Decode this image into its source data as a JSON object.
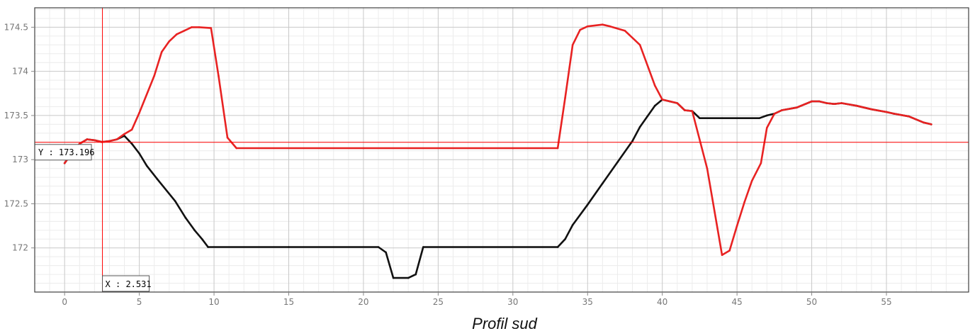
{
  "chart_data": {
    "type": "line",
    "title": "",
    "xlabel": "Profil sud",
    "ylabel": "",
    "xlim": [
      -2,
      60.5
    ],
    "ylim": [
      171.5,
      174.72
    ],
    "x_ticks": [
      0,
      5,
      10,
      15,
      20,
      25,
      30,
      35,
      40,
      45,
      50,
      55
    ],
    "y_ticks": [
      172,
      172.5,
      173,
      173.5,
      174,
      174.5
    ],
    "x_tick_labels": [
      "0",
      "5",
      "10",
      "15",
      "20",
      "25",
      "30",
      "35",
      "40",
      "45",
      "50",
      "55"
    ],
    "y_tick_labels": [
      "172",
      "172.5",
      "173",
      "173.5",
      "174",
      "174.5"
    ],
    "grid": true,
    "series": [
      {
        "color": "#111111",
        "points": [
          [
            0,
            172.96
          ],
          [
            0.5,
            173.08
          ],
          [
            1,
            173.18
          ],
          [
            1.5,
            173.23
          ],
          [
            2,
            173.22
          ],
          [
            2.5,
            173.2
          ],
          [
            3,
            173.21
          ],
          [
            3.5,
            173.23
          ],
          [
            4,
            173.27
          ],
          [
            4.5,
            173.18
          ],
          [
            5,
            173.07
          ],
          [
            5.5,
            172.93
          ],
          [
            6.2,
            172.78
          ],
          [
            7.4,
            172.53
          ],
          [
            8.1,
            172.34
          ],
          [
            8.7,
            172.2
          ],
          [
            9.2,
            172.1
          ],
          [
            9.6,
            172.01
          ],
          [
            15,
            172.01
          ],
          [
            21,
            172.01
          ],
          [
            21.5,
            171.95
          ],
          [
            22,
            171.66
          ],
          [
            23,
            171.66
          ],
          [
            23.5,
            171.7
          ],
          [
            24,
            172.01
          ],
          [
            33,
            172.01
          ],
          [
            33.5,
            172.1
          ],
          [
            34,
            172.26
          ],
          [
            35,
            172.49
          ],
          [
            36,
            172.73
          ],
          [
            37,
            172.97
          ],
          [
            38,
            173.21
          ],
          [
            38.5,
            173.37
          ],
          [
            39,
            173.49
          ],
          [
            39.5,
            173.61
          ],
          [
            40,
            173.68
          ],
          [
            40.5,
            173.66
          ],
          [
            41,
            173.64
          ],
          [
            41.5,
            173.56
          ],
          [
            42,
            173.55
          ],
          [
            42.5,
            173.47
          ],
          [
            44,
            173.47
          ],
          [
            46.5,
            173.47
          ],
          [
            47,
            173.5
          ],
          [
            47.5,
            173.52
          ],
          [
            48,
            173.56
          ],
          [
            49,
            173.59
          ],
          [
            50,
            173.66
          ],
          [
            50.5,
            173.66
          ],
          [
            51,
            173.64
          ],
          [
            51.5,
            173.63
          ],
          [
            52,
            173.64
          ],
          [
            53,
            173.61
          ],
          [
            54,
            173.57
          ],
          [
            55,
            173.54
          ],
          [
            55.5,
            173.52
          ],
          [
            56.5,
            173.49
          ],
          [
            57.5,
            173.42
          ],
          [
            58,
            173.4
          ]
        ]
      },
      {
        "color": "#e82222",
        "points": [
          [
            0,
            172.96
          ],
          [
            0.5,
            173.08
          ],
          [
            1,
            173.18
          ],
          [
            1.5,
            173.23
          ],
          [
            2,
            173.22
          ],
          [
            2.5,
            173.2
          ],
          [
            3,
            173.21
          ],
          [
            3.5,
            173.23
          ],
          [
            4,
            173.29
          ],
          [
            4.5,
            173.34
          ],
          [
            5,
            173.53
          ],
          [
            6,
            173.95
          ],
          [
            6.5,
            174.22
          ],
          [
            7,
            174.34
          ],
          [
            7.5,
            174.42
          ],
          [
            8,
            174.46
          ],
          [
            8.5,
            174.5
          ],
          [
            9,
            174.5
          ],
          [
            9.8,
            174.49
          ],
          [
            10.3,
            173.95
          ],
          [
            10.9,
            173.25
          ],
          [
            11.5,
            173.13
          ],
          [
            20,
            173.13
          ],
          [
            30,
            173.13
          ],
          [
            33,
            173.13
          ],
          [
            33.5,
            173.7
          ],
          [
            34,
            174.3
          ],
          [
            34.5,
            174.47
          ],
          [
            35,
            174.51
          ],
          [
            36,
            174.53
          ],
          [
            36.5,
            174.51
          ],
          [
            37.5,
            174.46
          ],
          [
            38.5,
            174.3
          ],
          [
            39.5,
            173.84
          ],
          [
            40,
            173.68
          ],
          [
            40.5,
            173.66
          ],
          [
            41,
            173.64
          ],
          [
            41.5,
            173.56
          ],
          [
            42,
            173.55
          ],
          [
            43,
            172.9
          ],
          [
            44,
            171.92
          ],
          [
            44.5,
            171.97
          ],
          [
            45,
            172.25
          ],
          [
            45.5,
            172.52
          ],
          [
            46,
            172.76
          ],
          [
            46.6,
            172.96
          ],
          [
            47,
            173.36
          ],
          [
            47.5,
            173.52
          ],
          [
            48,
            173.56
          ],
          [
            49,
            173.59
          ],
          [
            50,
            173.66
          ],
          [
            50.5,
            173.66
          ],
          [
            51,
            173.64
          ],
          [
            51.5,
            173.63
          ],
          [
            52,
            173.64
          ],
          [
            53,
            173.61
          ],
          [
            54,
            173.57
          ],
          [
            55,
            173.54
          ],
          [
            55.5,
            173.52
          ],
          [
            56.5,
            173.49
          ],
          [
            57.5,
            173.42
          ],
          [
            58,
            173.4
          ]
        ]
      }
    ],
    "cursor": {
      "x": 2.531,
      "y": 173.196,
      "x_label": "X : 2.531",
      "y_label": "Y : 173.196",
      "color": "#ff0000"
    }
  }
}
